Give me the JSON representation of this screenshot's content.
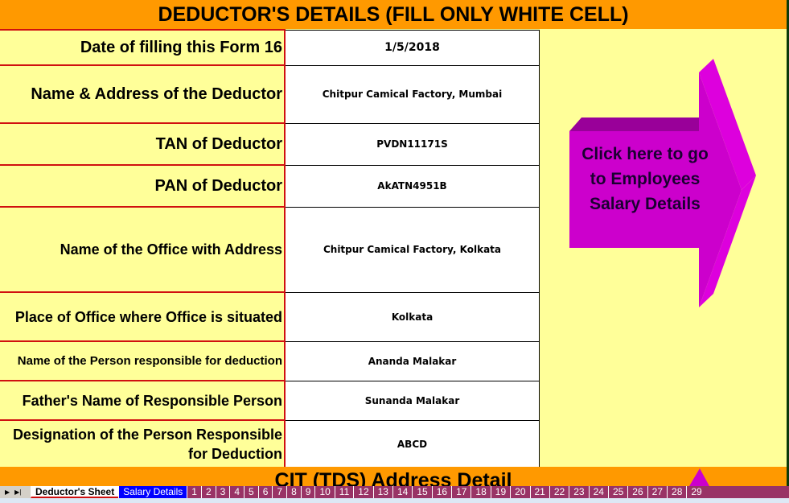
{
  "header": {
    "title": "DEDUCTOR'S DETAILS (FILL ONLY WHITE CELL)"
  },
  "rows": [
    {
      "label": "Date of filling this Form 16",
      "value": "1/5/2018"
    },
    {
      "label": "Name & Address of the Deductor",
      "value": "Chitpur Camical Factory, Mumbai"
    },
    {
      "label": "TAN of Deductor",
      "value": "PVDN11171S"
    },
    {
      "label": "PAN of Deductor",
      "value": "AkATN4951B"
    },
    {
      "label": "Name of the Office with Address",
      "value": "Chitpur Camical Factory, Kolkata"
    },
    {
      "label": "Place of Office where Office is situated",
      "value": "Kolkata"
    },
    {
      "label": "Name of the Person responsible for deduction",
      "value": "Ananda Malakar"
    },
    {
      "label": "Father's Name of Responsible Person",
      "value": "Sunanda Malakar"
    },
    {
      "label": "Designation of the Person Responsible for Deduction",
      "value": "ABCD"
    }
  ],
  "arrow_button": {
    "label": "Click here to go to Employees Salary Details",
    "color": "#CC00CC"
  },
  "section2": {
    "title": "CIT (TDS) Address Detail"
  },
  "tabs": {
    "active": "Deductor's Sheet",
    "salary": "Salary Details",
    "numbered": [
      "1",
      "2",
      "3",
      "4",
      "5",
      "6",
      "7",
      "8",
      "9",
      "10",
      "11",
      "12",
      "13",
      "14",
      "15",
      "16",
      "17",
      "18",
      "19",
      "20",
      "21",
      "22",
      "23",
      "24",
      "25",
      "26",
      "27",
      "28",
      "29"
    ]
  }
}
